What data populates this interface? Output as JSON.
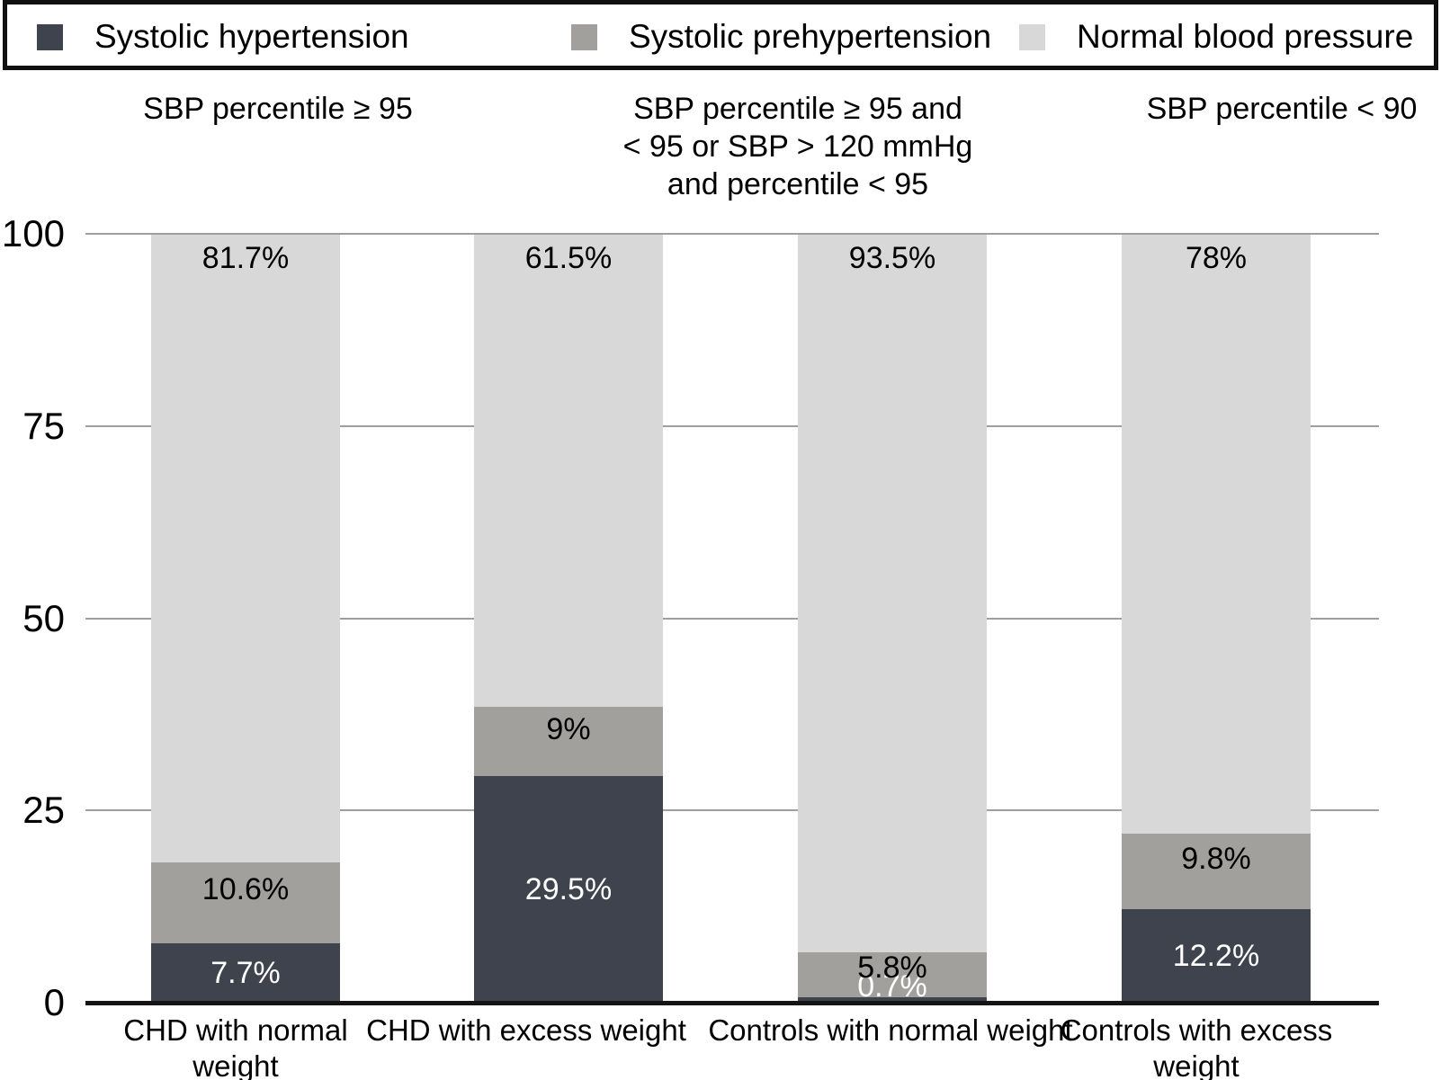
{
  "colors": {
    "hypertension": "#3e434d",
    "prehypertension": "#a1a09d",
    "normal": "#d8d8d9",
    "gridline": "#9e9e9e",
    "axis": "#141414",
    "label_dark_text": "#ffffff",
    "label_light_text": "#000000"
  },
  "legend": {
    "items": [
      {
        "label": "Systolic hypertension",
        "color_key": "hypertension"
      },
      {
        "label": "Systolic prehypertension",
        "color_key": "prehypertension"
      },
      {
        "label": "Normal blood pressure",
        "color_key": "normal"
      }
    ]
  },
  "column_headers": [
    {
      "lines": [
        "SBP percentile ≥ 95"
      ]
    },
    {
      "lines": [
        "SBP percentile ≥ 95 and",
        "< 95 or SBP > 120 mmHg",
        "and percentile < 95"
      ]
    },
    {
      "lines": [
        "SBP percentile < 90"
      ]
    }
  ],
  "chart_data": {
    "type": "bar",
    "stacked": true,
    "title": "",
    "xlabel": "",
    "ylabel": "",
    "ylim": [
      0,
      100
    ],
    "yticks": [
      0,
      25,
      50,
      75,
      100
    ],
    "grid": true,
    "legend_position": "top",
    "categories": [
      "CHD with normal weight",
      "CHD with excess weight",
      "Controls with normal weight",
      "Controls with excess weight"
    ],
    "category_lines": [
      [
        "CHD with normal",
        "weight"
      ],
      [
        "CHD with excess weight"
      ],
      [
        "Controls with normal weight"
      ],
      [
        "Controls with excess",
        "weight"
      ]
    ],
    "series": [
      {
        "name": "Systolic hypertension",
        "key": "hypertension",
        "color_key": "hypertension",
        "label_color": "#ffffff",
        "values": [
          7.7,
          29.5,
          0.7,
          12.2
        ],
        "labels": [
          "7.7%",
          "29.5%",
          "0.7%",
          "12.2%"
        ]
      },
      {
        "name": "Systolic prehypertension",
        "key": "prehypertension",
        "color_key": "prehypertension",
        "label_color": "#000000",
        "values": [
          10.6,
          9,
          5.8,
          9.8
        ],
        "labels": [
          "10.6%",
          "9%",
          "5.8%",
          "9.8%"
        ]
      },
      {
        "name": "Normal blood pressure",
        "key": "normal",
        "color_key": "normal",
        "label_color": "#000000",
        "values": [
          81.7,
          61.5,
          93.5,
          78
        ],
        "labels": [
          "81.7%",
          "61.5%",
          "93.5%",
          "78%"
        ]
      }
    ]
  }
}
